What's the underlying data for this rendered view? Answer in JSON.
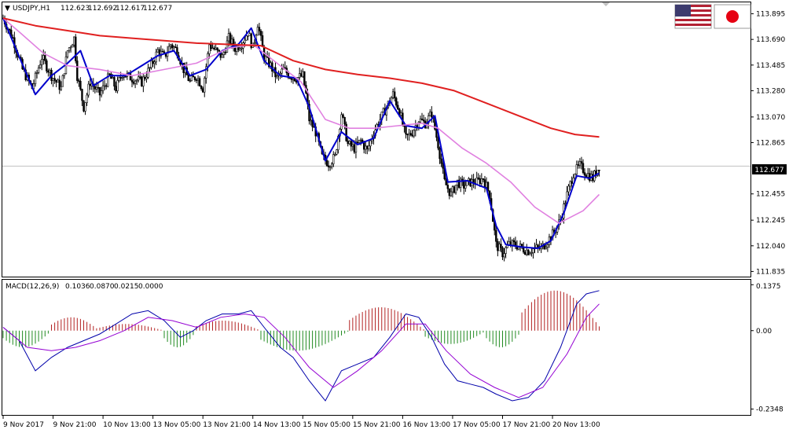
{
  "window": {
    "symbol_header": "USDJPY,H1",
    "ohlc": [
      "112.623",
      "112.692",
      "112.617",
      "112.677"
    ],
    "macd_header": "MACD(12,26,9)",
    "macd_values": [
      "0.1036",
      "0.0870",
      "0.0215",
      "0.0000"
    ],
    "flags": [
      "us-flag-icon",
      "japan-flag-icon"
    ]
  },
  "colors": {
    "bull_body": "#ffffff",
    "bear_body": "#000000",
    "fast_ma": "#0000cc",
    "mid_ma": "#e080e0",
    "slow_ma": "#e02020",
    "price_line": "#c0c0c0",
    "macd_hist_up": "#b22222",
    "macd_hist_down": "#228b22",
    "macd_line": "#0000aa",
    "signal_line": "#9400d3"
  },
  "chart_data": [
    {
      "type": "candlestick",
      "title": "USDJPY,H1",
      "current_price": "112.677",
      "y_ticks": [
        "113.895",
        "113.690",
        "113.485",
        "113.280",
        "113.070",
        "112.865",
        "112.455",
        "112.245",
        "112.040",
        "111.835"
      ],
      "ylim": [
        111.8,
        113.98
      ],
      "x_ticks": [
        "9 Nov 2017",
        "9 Nov 21:00",
        "10 Nov 13:00",
        "13 Nov 05:00",
        "13 Nov 21:00",
        "14 Nov 13:00",
        "15 Nov 05:00",
        "15 Nov 21:00",
        "16 Nov 13:00",
        "17 Nov 05:00",
        "17 Nov 21:00",
        "20 Nov 13:00"
      ],
      "close_path": [
        [
          0,
          113.86
        ],
        [
          6,
          113.7
        ],
        [
          12,
          113.45
        ],
        [
          18,
          113.3
        ],
        [
          24,
          113.55
        ],
        [
          30,
          113.4
        ],
        [
          36,
          113.3
        ],
        [
          40,
          113.6
        ],
        [
          44,
          113.7
        ],
        [
          46,
          113.4
        ],
        [
          50,
          113.15
        ],
        [
          54,
          113.35
        ],
        [
          60,
          113.25
        ],
        [
          66,
          113.4
        ],
        [
          70,
          113.3
        ],
        [
          74,
          113.42
        ],
        [
          80,
          113.38
        ],
        [
          86,
          113.35
        ],
        [
          92,
          113.48
        ],
        [
          96,
          113.6
        ],
        [
          100,
          113.55
        ],
        [
          104,
          113.65
        ],
        [
          108,
          113.6
        ],
        [
          112,
          113.45
        ],
        [
          116,
          113.35
        ],
        [
          120,
          113.4
        ],
        [
          124,
          113.3
        ],
        [
          128,
          113.65
        ],
        [
          132,
          113.6
        ],
        [
          136,
          113.55
        ],
        [
          140,
          113.7
        ],
        [
          144,
          113.62
        ],
        [
          148,
          113.66
        ],
        [
          152,
          113.75
        ],
        [
          155,
          113.62
        ],
        [
          158,
          113.82
        ],
        [
          162,
          113.55
        ],
        [
          166,
          113.48
        ],
        [
          170,
          113.38
        ],
        [
          174,
          113.45
        ],
        [
          178,
          113.4
        ],
        [
          182,
          113.38
        ],
        [
          186,
          113.4
        ],
        [
          188,
          113.25
        ],
        [
          190,
          113.05
        ],
        [
          194,
          112.95
        ],
        [
          198,
          112.75
        ],
        [
          202,
          112.7
        ],
        [
          206,
          112.75
        ],
        [
          210,
          113.1
        ],
        [
          214,
          112.85
        ],
        [
          218,
          112.82
        ],
        [
          222,
          112.88
        ],
        [
          226,
          112.8
        ],
        [
          230,
          112.95
        ],
        [
          234,
          113.05
        ],
        [
          238,
          113.15
        ],
        [
          242,
          113.25
        ],
        [
          246,
          113.12
        ],
        [
          250,
          112.9
        ],
        [
          254,
          112.95
        ],
        [
          258,
          113.05
        ],
        [
          262,
          113.02
        ],
        [
          266,
          113.1
        ],
        [
          270,
          112.85
        ],
        [
          274,
          112.55
        ],
        [
          278,
          112.45
        ],
        [
          282,
          112.55
        ],
        [
          286,
          112.52
        ],
        [
          290,
          112.55
        ],
        [
          294,
          112.55
        ],
        [
          298,
          112.58
        ],
        [
          302,
          112.45
        ],
        [
          306,
          112.05
        ],
        [
          310,
          111.98
        ],
        [
          314,
          112.05
        ],
        [
          318,
          112.05
        ],
        [
          322,
          112.02
        ],
        [
          326,
          112.0
        ],
        [
          330,
          112.02
        ],
        [
          334,
          112.02
        ],
        [
          338,
          112.08
        ],
        [
          342,
          112.15
        ],
        [
          346,
          112.25
        ],
        [
          350,
          112.45
        ],
        [
          354,
          112.62
        ],
        [
          358,
          112.68
        ],
        [
          362,
          112.62
        ],
        [
          366,
          112.58
        ],
        [
          370,
          112.68
        ]
      ],
      "series": [
        {
          "name": "fast",
          "values": [
            [
              0,
              113.86
            ],
            [
              10,
              113.55
            ],
            [
              20,
              113.25
            ],
            [
              30,
              113.4
            ],
            [
              40,
              113.5
            ],
            [
              48,
              113.6
            ],
            [
              56,
              113.32
            ],
            [
              66,
              113.4
            ],
            [
              76,
              113.4
            ],
            [
              86,
              113.48
            ],
            [
              96,
              113.56
            ],
            [
              106,
              113.6
            ],
            [
              116,
              113.4
            ],
            [
              126,
              113.45
            ],
            [
              136,
              113.6
            ],
            [
              146,
              113.65
            ],
            [
              154,
              113.78
            ],
            [
              162,
              113.52
            ],
            [
              172,
              113.4
            ],
            [
              182,
              113.38
            ],
            [
              190,
              113.15
            ],
            [
              200,
              112.72
            ],
            [
              210,
              112.95
            ],
            [
              220,
              112.85
            ],
            [
              230,
              112.9
            ],
            [
              240,
              113.2
            ],
            [
              250,
              113.0
            ],
            [
              260,
              112.98
            ],
            [
              268,
              113.08
            ],
            [
              276,
              112.55
            ],
            [
              288,
              112.56
            ],
            [
              300,
              112.5
            ],
            [
              306,
              112.2
            ],
            [
              312,
              112.05
            ],
            [
              322,
              112.03
            ],
            [
              332,
              112.02
            ],
            [
              340,
              112.08
            ],
            [
              348,
              112.3
            ],
            [
              356,
              112.6
            ],
            [
              364,
              112.58
            ],
            [
              370,
              112.62
            ]
          ]
        },
        {
          "name": "mid",
          "values": [
            [
              0,
              113.86
            ],
            [
              10,
              113.75
            ],
            [
              25,
              113.58
            ],
            [
              40,
              113.48
            ],
            [
              60,
              113.45
            ],
            [
              80,
              113.4
            ],
            [
              100,
              113.45
            ],
            [
              120,
              113.5
            ],
            [
              140,
              113.62
            ],
            [
              155,
              113.65
            ],
            [
              170,
              113.5
            ],
            [
              185,
              113.35
            ],
            [
              200,
              113.05
            ],
            [
              215,
              112.98
            ],
            [
              230,
              112.98
            ],
            [
              245,
              113.0
            ],
            [
              260,
              113.02
            ],
            [
              270,
              112.98
            ],
            [
              285,
              112.82
            ],
            [
              300,
              112.7
            ],
            [
              315,
              112.55
            ],
            [
              330,
              112.35
            ],
            [
              345,
              112.22
            ],
            [
              360,
              112.32
            ],
            [
              370,
              112.45
            ]
          ]
        },
        {
          "name": "slow",
          "values": [
            [
              0,
              113.86
            ],
            [
              20,
              113.8
            ],
            [
              40,
              113.76
            ],
            [
              60,
              113.72
            ],
            [
              80,
              113.7
            ],
            [
              100,
              113.68
            ],
            [
              120,
              113.66
            ],
            [
              140,
              113.65
            ],
            [
              160,
              113.64
            ],
            [
              180,
              113.52
            ],
            [
              200,
              113.45
            ],
            [
              220,
              113.41
            ],
            [
              240,
              113.38
            ],
            [
              260,
              113.34
            ],
            [
              280,
              113.28
            ],
            [
              300,
              113.18
            ],
            [
              320,
              113.08
            ],
            [
              340,
              112.98
            ],
            [
              355,
              112.93
            ],
            [
              370,
              112.91
            ]
          ]
        }
      ]
    },
    {
      "type": "bar+line",
      "title": "MACD(12,26,9)",
      "y_ticks": [
        "0.1375",
        "0.00",
        "-0.2348"
      ],
      "ylim": [
        -0.25,
        0.15
      ],
      "histogram": [
        {
          "x_from": 0,
          "x_to": 30,
          "value": -0.05
        },
        {
          "x_from": 30,
          "x_to": 60,
          "value": 0.04
        },
        {
          "x_from": 60,
          "x_to": 100,
          "value": 0.02
        },
        {
          "x_from": 100,
          "x_to": 120,
          "value": -0.05
        },
        {
          "x_from": 120,
          "x_to": 160,
          "value": 0.03
        },
        {
          "x_from": 160,
          "x_to": 215,
          "value": -0.06
        },
        {
          "x_from": 215,
          "x_to": 262,
          "value": 0.07
        },
        {
          "x_from": 262,
          "x_to": 300,
          "value": -0.04
        },
        {
          "x_from": 300,
          "x_to": 322,
          "value": -0.05
        },
        {
          "x_from": 322,
          "x_to": 372,
          "value": 0.12
        }
      ],
      "series": [
        {
          "name": "macd",
          "values": [
            [
              0,
              0.01
            ],
            [
              10,
              -0.03
            ],
            [
              20,
              -0.12
            ],
            [
              30,
              -0.08
            ],
            [
              40,
              -0.05
            ],
            [
              50,
              -0.03
            ],
            [
              60,
              -0.01
            ],
            [
              70,
              0.02
            ],
            [
              80,
              0.05
            ],
            [
              90,
              0.06
            ],
            [
              100,
              0.03
            ],
            [
              110,
              -0.02
            ],
            [
              118,
              0.0
            ],
            [
              126,
              0.03
            ],
            [
              136,
              0.05
            ],
            [
              146,
              0.05
            ],
            [
              154,
              0.06
            ],
            [
              162,
              0.01
            ],
            [
              172,
              -0.05
            ],
            [
              180,
              -0.08
            ],
            [
              190,
              -0.15
            ],
            [
              200,
              -0.21
            ],
            [
              210,
              -0.12
            ],
            [
              220,
              -0.1
            ],
            [
              230,
              -0.08
            ],
            [
              240,
              -0.02
            ],
            [
              250,
              0.05
            ],
            [
              258,
              0.04
            ],
            [
              266,
              -0.02
            ],
            [
              274,
              -0.1
            ],
            [
              282,
              -0.15
            ],
            [
              290,
              -0.16
            ],
            [
              298,
              -0.17
            ],
            [
              306,
              -0.19
            ],
            [
              316,
              -0.21
            ],
            [
              326,
              -0.2
            ],
            [
              336,
              -0.15
            ],
            [
              346,
              -0.05
            ],
            [
              356,
              0.08
            ],
            [
              362,
              0.11
            ],
            [
              370,
              0.12
            ]
          ]
        },
        {
          "name": "signal",
          "values": [
            [
              0,
              0.01
            ],
            [
              15,
              -0.05
            ],
            [
              30,
              -0.06
            ],
            [
              45,
              -0.05
            ],
            [
              60,
              -0.03
            ],
            [
              75,
              0.0
            ],
            [
              90,
              0.04
            ],
            [
              105,
              0.03
            ],
            [
              120,
              0.01
            ],
            [
              135,
              0.04
            ],
            [
              150,
              0.05
            ],
            [
              162,
              0.04
            ],
            [
              175,
              -0.02
            ],
            [
              190,
              -0.11
            ],
            [
              205,
              -0.17
            ],
            [
              220,
              -0.12
            ],
            [
              235,
              -0.06
            ],
            [
              250,
              0.02
            ],
            [
              262,
              0.02
            ],
            [
              275,
              -0.06
            ],
            [
              290,
              -0.13
            ],
            [
              305,
              -0.17
            ],
            [
              320,
              -0.2
            ],
            [
              335,
              -0.17
            ],
            [
              350,
              -0.07
            ],
            [
              362,
              0.04
            ],
            [
              370,
              0.08
            ]
          ]
        }
      ]
    }
  ]
}
